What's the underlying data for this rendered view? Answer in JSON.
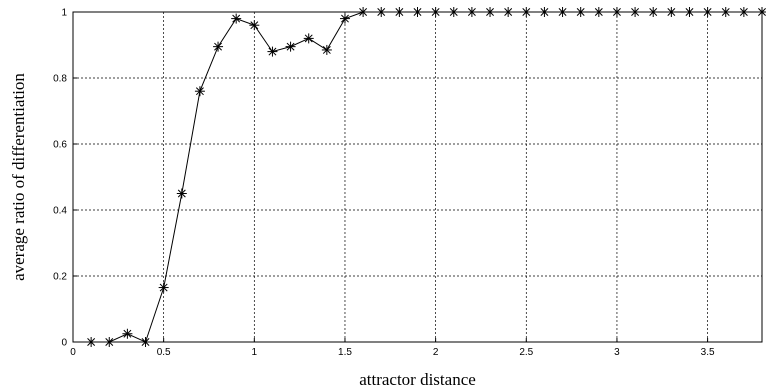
{
  "chart_data": {
    "type": "line",
    "title": "",
    "xlabel": "attractor distance",
    "ylabel": "average ratio of differentiation",
    "xlim": [
      0,
      3.8
    ],
    "ylim": [
      0,
      1
    ],
    "x_ticks": [
      0,
      0.5,
      1,
      1.5,
      2,
      2.5,
      3,
      3.5
    ],
    "x_tick_labels": [
      "0",
      "0.5",
      "1",
      "1.5",
      "2",
      "2.5",
      "3",
      "3.5"
    ],
    "y_ticks": [
      0,
      0.2,
      0.4,
      0.6,
      0.8,
      1
    ],
    "y_tick_labels": [
      "0",
      "0.2",
      "0.4",
      "0.6",
      "0.8",
      "1"
    ],
    "grid": true,
    "grid_style": "dashed",
    "marker": "asterisk",
    "series": [
      {
        "color": "#000000",
        "x": [
          0.1,
          0.2,
          0.3,
          0.4,
          0.5,
          0.6,
          0.7,
          0.8,
          0.9,
          1.0,
          1.1,
          1.2,
          1.3,
          1.4,
          1.5,
          1.6,
          1.7,
          1.8,
          1.9,
          2.0,
          2.1,
          2.2,
          2.3,
          2.4,
          2.5,
          2.6,
          2.7,
          2.8,
          2.9,
          3.0,
          3.1,
          3.2,
          3.3,
          3.4,
          3.5,
          3.6,
          3.7,
          3.8
        ],
        "y": [
          0,
          0,
          0.025,
          0,
          0.165,
          0.45,
          0.76,
          0.895,
          0.98,
          0.96,
          0.88,
          0.895,
          0.92,
          0.885,
          0.98,
          1,
          1,
          1,
          1,
          1,
          1,
          1,
          1,
          1,
          1,
          1,
          1,
          1,
          1,
          1,
          1,
          1,
          1,
          1,
          1,
          1,
          1,
          1
        ]
      }
    ]
  }
}
